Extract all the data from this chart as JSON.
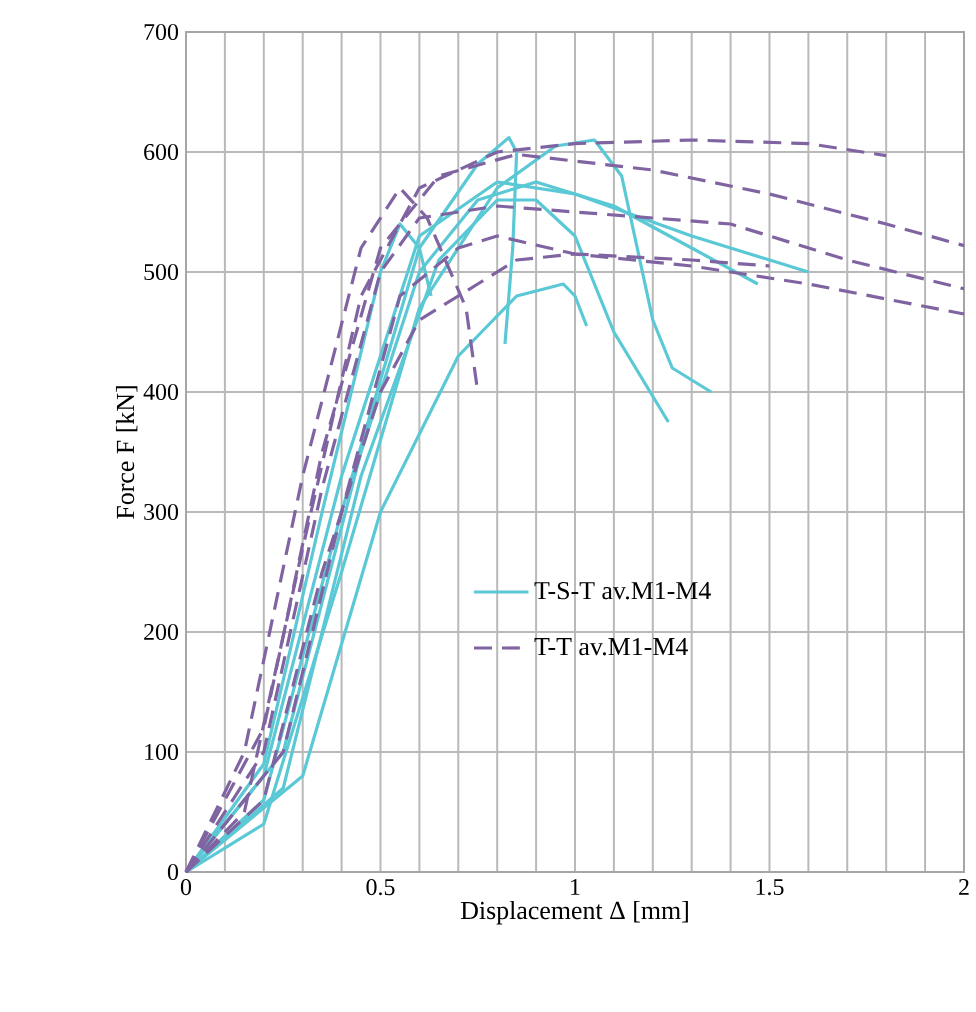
{
  "chart_data": {
    "type": "line",
    "xlabel": "Displacement Δ [mm]",
    "ylabel": "Force F [kN]",
    "xlim": [
      0,
      2
    ],
    "ylim": [
      0,
      700
    ],
    "xticks": [
      0,
      {
        "value": 0.1,
        "label": null
      },
      {
        "value": 0.2,
        "label": null
      },
      {
        "value": 0.3,
        "label": null
      },
      {
        "value": 0.4,
        "label": null
      },
      0.5,
      {
        "value": 0.6,
        "label": null
      },
      {
        "value": 0.7,
        "label": null
      },
      {
        "value": 0.8,
        "label": null
      },
      {
        "value": 0.9,
        "label": null
      },
      1,
      {
        "value": 1.1,
        "label": null
      },
      {
        "value": 1.2,
        "label": null
      },
      {
        "value": 1.3,
        "label": null
      },
      {
        "value": 1.4,
        "label": null
      },
      1.5,
      {
        "value": 1.6,
        "label": null
      },
      {
        "value": 1.7,
        "label": null
      },
      {
        "value": 1.8,
        "label": null
      },
      {
        "value": 1.9,
        "label": null
      },
      2
    ],
    "yticks": [
      0,
      100,
      200,
      300,
      400,
      500,
      600,
      700
    ],
    "grid": true,
    "legend": "right",
    "marker": "none",
    "series": [
      {
        "name": "T-S-T av.M1-M4",
        "color": "#5bc8d5",
        "line_style": "solid",
        "x": [
          0,
          0.2,
          0.4,
          0.6,
          0.8,
          0.95,
          1.05,
          1.12,
          1.2,
          1.25,
          1.35
        ],
        "values": [
          0,
          40,
          250,
          470,
          570,
          605,
          610,
          580,
          460,
          420,
          400
        ]
      },
      {
        "color": "#5bc8d5",
        "line_style": "solid",
        "x": [
          0,
          0.2,
          0.4,
          0.6,
          0.75,
          0.83,
          0.85,
          0.84,
          0.82
        ],
        "values": [
          0,
          60,
          300,
          520,
          590,
          612,
          600,
          520,
          440
        ]
      },
      {
        "color": "#5bc8d5",
        "line_style": "solid",
        "x": [
          0,
          0.25,
          0.45,
          0.65,
          0.8,
          0.9,
          1.0,
          1.1,
          1.24
        ],
        "values": [
          0,
          70,
          330,
          510,
          560,
          560,
          530,
          450,
          375
        ]
      },
      {
        "color": "#5bc8d5",
        "line_style": "solid",
        "x": [
          0,
          0.3,
          0.5,
          0.7,
          0.85,
          0.97,
          1.0,
          1.03
        ],
        "values": [
          0,
          80,
          300,
          430,
          480,
          490,
          480,
          455
        ]
      },
      {
        "color": "#5bc8d5",
        "line_style": "solid",
        "x": [
          0,
          0.25,
          0.45,
          0.6,
          0.75,
          0.9,
          1.1,
          1.3,
          1.47
        ],
        "values": [
          0,
          100,
          350,
          500,
          560,
          575,
          555,
          520,
          490
        ]
      },
      {
        "color": "#5bc8d5",
        "line_style": "solid",
        "x": [
          0,
          0.2,
          0.4,
          0.6,
          0.8,
          1.0,
          1.3,
          1.6
        ],
        "values": [
          0,
          80,
          330,
          530,
          575,
          565,
          530,
          500
        ]
      },
      {
        "color": "#5bc8d5",
        "line_style": "solid",
        "x": [
          0,
          0.2,
          0.35,
          0.5,
          0.55,
          0.6,
          0.63
        ],
        "values": [
          0,
          90,
          300,
          500,
          540,
          520,
          480
        ]
      },
      {
        "name": "T-T av.M1-M4",
        "color": "#8064a2",
        "line_style": "dashed",
        "x": [
          0,
          0.15,
          0.3,
          0.45,
          0.6,
          0.8,
          1.0,
          1.3,
          1.6,
          1.8
        ],
        "values": [
          0,
          50,
          270,
          480,
          570,
          600,
          607,
          610,
          607,
          597
        ]
      },
      {
        "color": "#8064a2",
        "line_style": "dashed",
        "x": [
          0,
          0.2,
          0.35,
          0.5,
          0.65,
          0.85,
          1.2,
          1.5,
          1.8,
          2.0
        ],
        "values": [
          0,
          120,
          350,
          520,
          580,
          598,
          585,
          565,
          540,
          522
        ]
      },
      {
        "color": "#8064a2",
        "line_style": "dashed",
        "x": [
          0,
          0.2,
          0.35,
          0.5,
          0.6,
          0.8,
          1.0,
          1.4,
          1.7,
          2.0
        ],
        "values": [
          0,
          100,
          320,
          500,
          545,
          555,
          550,
          540,
          510,
          486
        ]
      },
      {
        "color": "#8064a2",
        "line_style": "dashed",
        "x": [
          0,
          0.25,
          0.4,
          0.55,
          0.7,
          0.8,
          1.0,
          1.3,
          1.6,
          2.0
        ],
        "values": [
          0,
          100,
          300,
          480,
          520,
          530,
          515,
          505,
          490,
          465
        ]
      },
      {
        "color": "#8064a2",
        "line_style": "dashed",
        "x": [
          0,
          0.15,
          0.3,
          0.45,
          0.55,
          0.62,
          0.72,
          0.75
        ],
        "values": [
          0,
          100,
          330,
          520,
          570,
          545,
          470,
          400
        ]
      },
      {
        "color": "#8064a2",
        "line_style": "dashed",
        "x": [
          0,
          0.2,
          0.35,
          0.5,
          0.6,
          0.75,
          0.85,
          1.0,
          1.3,
          1.5
        ],
        "values": [
          0,
          60,
          250,
          400,
          460,
          490,
          510,
          515,
          510,
          505
        ]
      }
    ]
  }
}
